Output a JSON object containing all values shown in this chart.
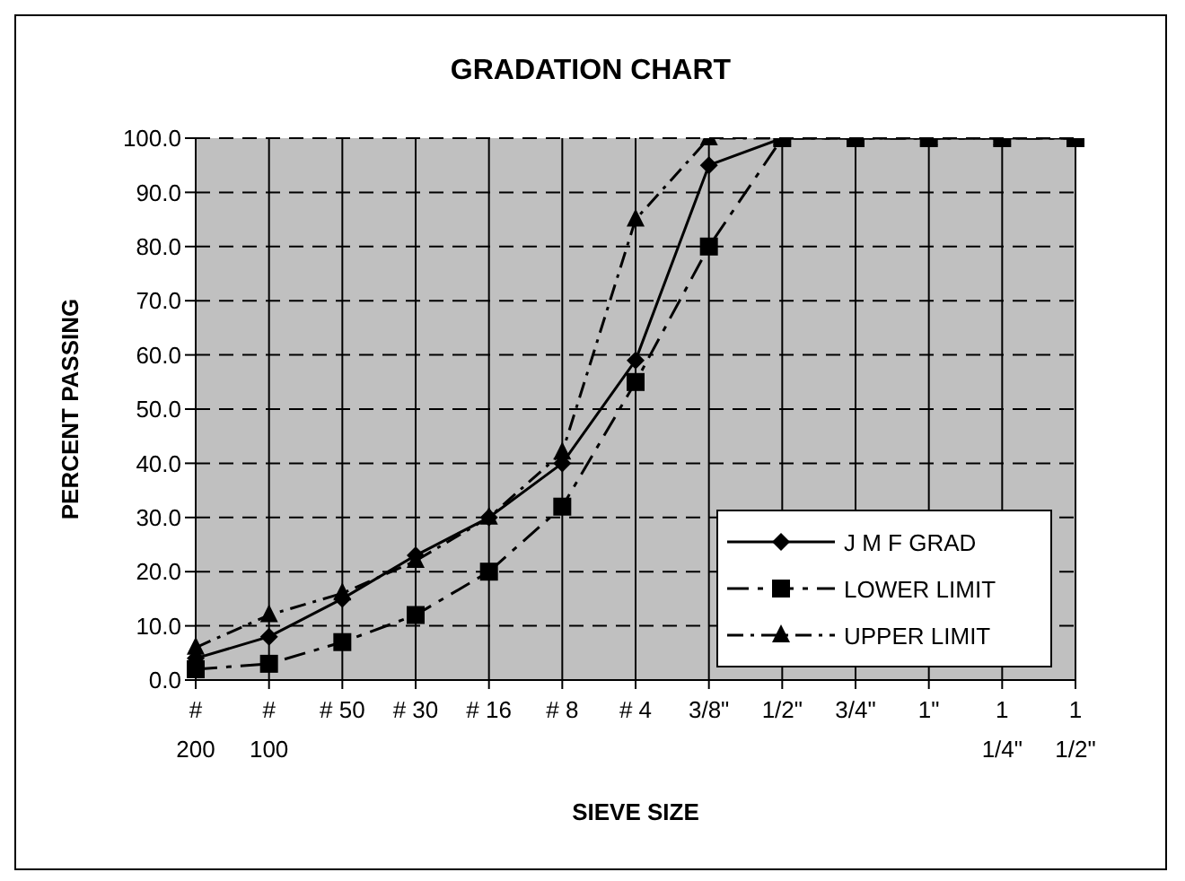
{
  "chart_data": {
    "type": "line",
    "title": "GRADATION CHART",
    "xlabel": "SIEVE SIZE",
    "ylabel": "PERCENT PASSING",
    "categories": [
      "# 200",
      "# 100",
      "# 50",
      "# 30",
      "# 16",
      "# 8",
      "# 4",
      "3/8\"",
      "1/2\"",
      "3/4\"",
      "1\"",
      "1 1/4\"",
      "1 1/2\""
    ],
    "series": [
      {
        "name": "J M F GRAD",
        "color": "#000000",
        "marker": "diamond",
        "line_style": "solid",
        "values": [
          4,
          8,
          15,
          23,
          30,
          40,
          59,
          95,
          100,
          100,
          100,
          100,
          100
        ]
      },
      {
        "name": "LOWER LIMIT",
        "color": "#000000",
        "marker": "square",
        "line_style": "dashed",
        "values": [
          2,
          3,
          7,
          12,
          20,
          32,
          55,
          80,
          100,
          100,
          100,
          100,
          100
        ]
      },
      {
        "name": "UPPER LIMIT",
        "color": "#000000",
        "marker": "triangle",
        "line_style": "dashdot",
        "values": [
          6,
          12,
          16,
          22,
          30,
          42,
          85,
          100,
          100,
          100,
          100,
          100,
          100
        ]
      }
    ],
    "ylim": [
      0,
      100
    ],
    "yticks": [
      {
        "value": 0,
        "label": "0.0"
      },
      {
        "value": 10,
        "label": "10.0"
      },
      {
        "value": 20,
        "label": "20.0"
      },
      {
        "value": 30,
        "label": "30.0"
      },
      {
        "value": 40,
        "label": "40.0"
      },
      {
        "value": 50,
        "label": "50.0"
      },
      {
        "value": 60,
        "label": "60.0"
      },
      {
        "value": 70,
        "label": "70.0"
      },
      {
        "value": 80,
        "label": "80.0"
      },
      {
        "value": 90,
        "label": "90.0"
      },
      {
        "value": 100,
        "label": "100.0"
      }
    ],
    "grid": true,
    "legend": "bottom right"
  }
}
